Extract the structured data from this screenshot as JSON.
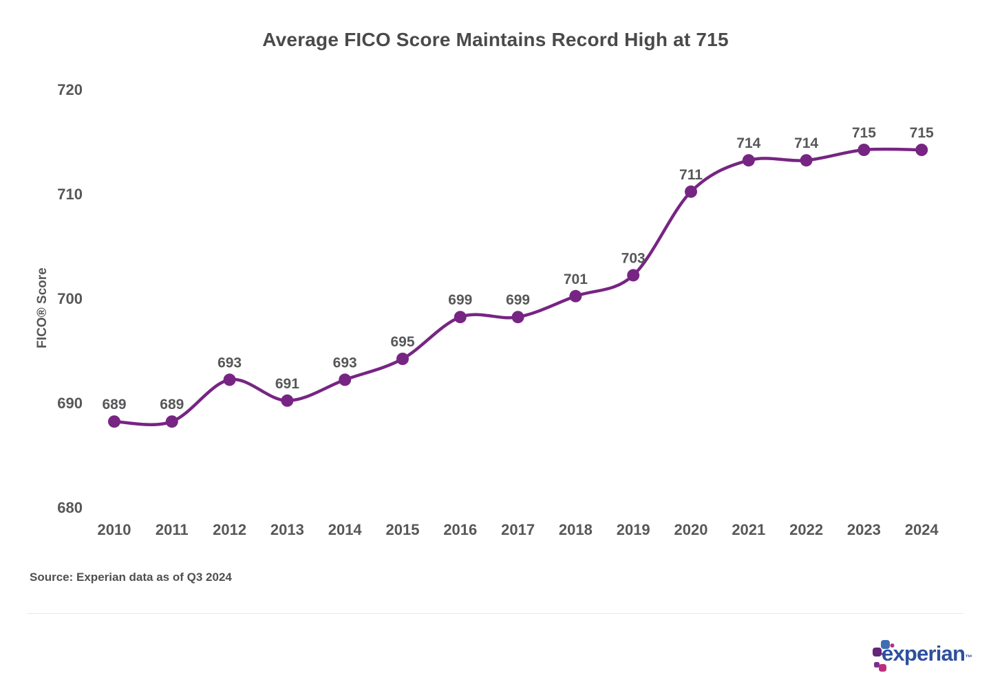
{
  "chart_data": {
    "type": "line",
    "title": "Average FICO Score Maintains Record High at 715",
    "x": [
      "2010",
      "2011",
      "2012",
      "2013",
      "2014",
      "2015",
      "2016",
      "2017",
      "2018",
      "2019",
      "2020",
      "2021",
      "2022",
      "2023",
      "2024"
    ],
    "series": [
      {
        "name": "Average FICO Score",
        "values": [
          689,
          689,
          693,
          691,
          693,
          695,
          699,
          699,
          701,
          703,
          711,
          714,
          714,
          715,
          715
        ]
      }
    ],
    "ylabel": "FICO® Score",
    "xlabel": "",
    "yticks": [
      720,
      710,
      700,
      690,
      680
    ],
    "ylim": [
      680,
      720
    ],
    "grid": false,
    "legend_position": "none",
    "point_labels": true,
    "line_color": "#772583",
    "point_color": "#772583",
    "label_color": "#565759"
  },
  "source_note": "Source: Experian data as of Q3 2024",
  "footer": {
    "brand_wordmark": "experian",
    "trademark": "™",
    "brand_colors": {
      "wordmark_navy": "#2d4f9e",
      "blue_square": "#406EB3",
      "purple_square": "#632678",
      "magenta_square": "#BA2F7D",
      "small_purple": "#7D2E8D"
    }
  }
}
